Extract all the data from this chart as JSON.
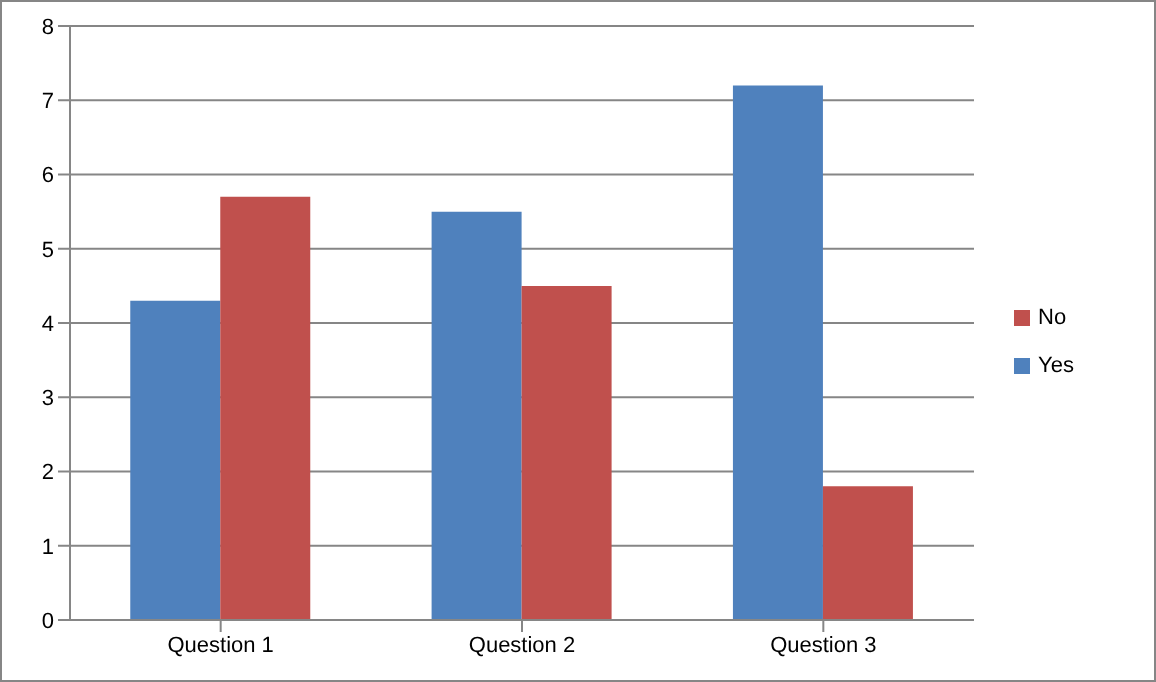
{
  "chart_data": {
    "type": "bar",
    "categories": [
      "Question 1",
      "Question 2",
      "Question 3"
    ],
    "series": [
      {
        "name": "Yes",
        "color": "#4f81bd",
        "values": [
          4.3,
          5.5,
          7.2
        ]
      },
      {
        "name": "No",
        "color": "#c0504d",
        "values": [
          5.7,
          4.5,
          1.8
        ]
      }
    ],
    "ylim": [
      0,
      8
    ],
    "yticks": [
      0,
      1,
      2,
      3,
      4,
      5,
      6,
      7,
      8
    ],
    "grid": "y",
    "legend": "right"
  }
}
